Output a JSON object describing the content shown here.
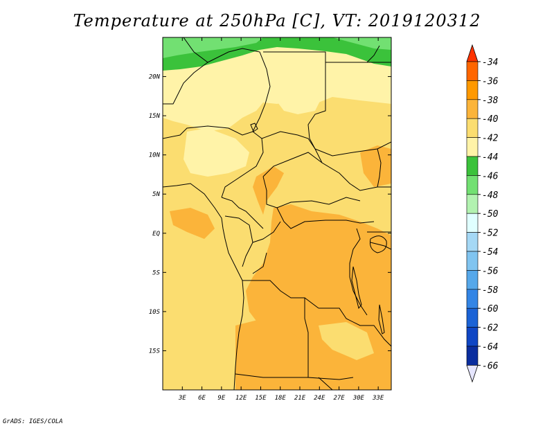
{
  "title": "Temperature at 250hPa [C], VT: 2019120312",
  "credit": "GrADS: IGES/COLA",
  "map": {
    "lon_range": [
      0,
      35
    ],
    "lat_range": [
      -20,
      25
    ],
    "lon_ticks": [
      "3E",
      "6E",
      "9E",
      "12E",
      "15E",
      "18E",
      "21E",
      "24E",
      "27E",
      "30E",
      "33E"
    ],
    "lat_ticks": [
      "20N",
      "15N",
      "10N",
      "5N",
      "EQ",
      "5S",
      "10S",
      "15S"
    ]
  },
  "colorbar": {
    "levels": [
      "-34",
      "-36",
      "-38",
      "-40",
      "-42",
      "-44",
      "-46",
      "-48",
      "-50",
      "-52",
      "-54",
      "-56",
      "-58",
      "-60",
      "-62",
      "-64",
      "-66"
    ],
    "colors": [
      "#ff3300",
      "#ff6600",
      "#ff9900",
      "#fbb43a",
      "#fbdd70",
      "#fff3a8",
      "#3bc23b",
      "#72e072",
      "#b2f2b0",
      "#e0ffff",
      "#a5d8f5",
      "#80c4f0",
      "#56a8ea",
      "#3385e5",
      "#1b63d6",
      "#0f46c4",
      "#0a2d9e",
      "#0d1470",
      "#e6e6ff"
    ]
  }
}
